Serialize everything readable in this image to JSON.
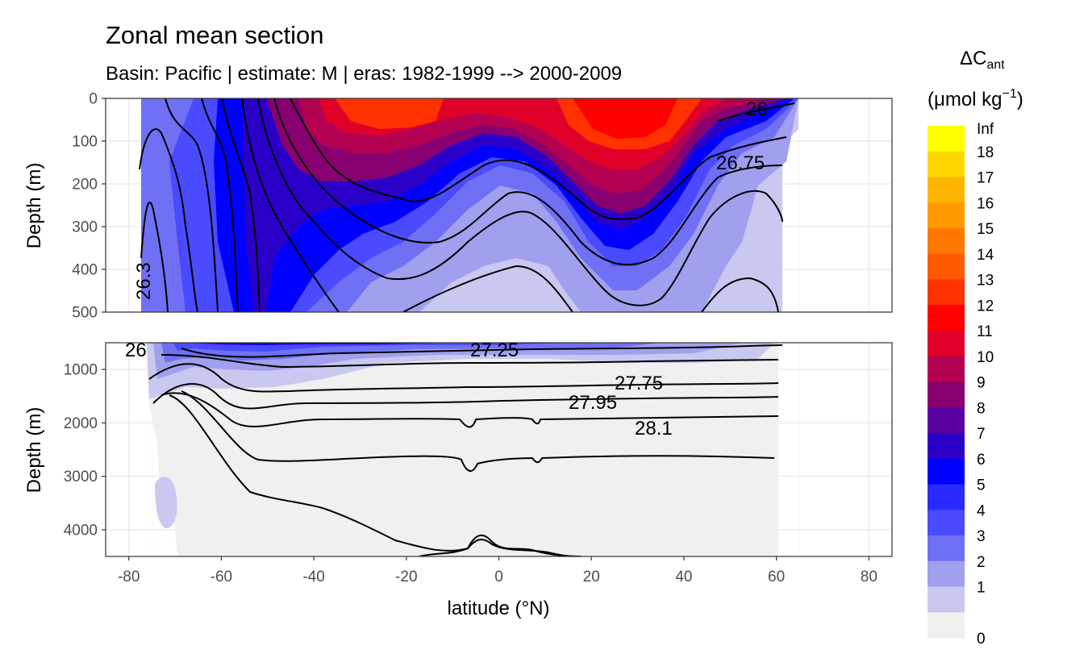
{
  "chart_data": {
    "type": "heatmap",
    "title": "Zonal mean section",
    "subtitle": "Basin: Pacific | estimate: M  | eras: 1982-1999 --> 2000-2009",
    "xlabel": "latitude (°N)",
    "ylabel": "Depth (m)",
    "x_ticks": [
      "-80",
      "-60",
      "-40",
      "-20",
      "0",
      "20",
      "40",
      "60",
      "80"
    ],
    "xlim": [
      -85,
      85
    ],
    "upper_panel": {
      "ylim": [
        0,
        500
      ],
      "y_ticks": [
        "0",
        "100",
        "200",
        "300",
        "400",
        "500"
      ]
    },
    "lower_panel": {
      "ylim": [
        500,
        4500
      ],
      "y_ticks": [
        "1000",
        "2000",
        "3000",
        "4000"
      ]
    },
    "legend": {
      "title_main": "ΔC",
      "title_sub": "ant",
      "unit_main": "(μmol kg",
      "unit_sup": "−1",
      "unit_close": ")",
      "labels": [
        "Inf",
        "18",
        "17",
        "16",
        "15",
        "14",
        "13",
        "12",
        "11",
        "10",
        "9",
        "8",
        "7",
        "6",
        "5",
        "4",
        "3",
        "2",
        "1",
        "0"
      ],
      "colors": [
        "#ffff00",
        "#ffd700",
        "#ffb400",
        "#ff9a00",
        "#ff7800",
        "#ff5a00",
        "#ff3200",
        "#ff0000",
        "#e0002a",
        "#b40050",
        "#880070",
        "#5a00a0",
        "#2a00c8",
        "#0000ff",
        "#2a2aff",
        "#4a4aff",
        "#7070f5",
        "#a0a0ee",
        "#c8c8f0",
        "#f0f0f0"
      ]
    },
    "contour_labels": [
      "26",
      "26.75",
      "26.3",
      "26",
      "27.25",
      "27.75",
      "27.95",
      "28.1"
    ]
  }
}
